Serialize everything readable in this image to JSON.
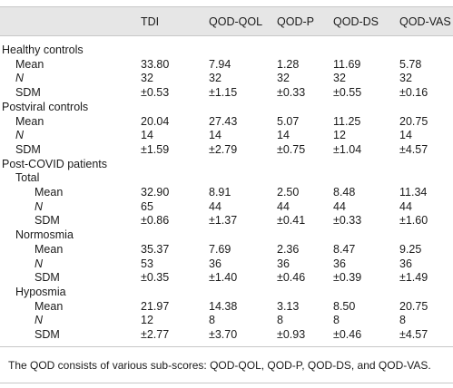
{
  "columns": [
    "",
    "TDI",
    "QOD-QOL",
    "QOD-P",
    "QOD-DS",
    "QOD-VAS"
  ],
  "rows": [
    {
      "kind": "section",
      "label": "Healthy controls",
      "values": [
        "",
        "",
        "",
        "",
        ""
      ]
    },
    {
      "kind": "stat",
      "label": "Mean",
      "italic": false,
      "values": [
        "33.80",
        "7.94",
        "1.28",
        "11.69",
        "5.78"
      ]
    },
    {
      "kind": "stat",
      "label": "N",
      "italic": true,
      "values": [
        "32",
        "32",
        "32",
        "32",
        "32"
      ]
    },
    {
      "kind": "stat",
      "label": "SDM",
      "italic": false,
      "values": [
        "±0.53",
        "±1.15",
        "±0.33",
        "±0.55",
        "±0.16"
      ]
    },
    {
      "kind": "section",
      "label": "Postviral controls",
      "values": [
        "",
        "",
        "",
        "",
        ""
      ]
    },
    {
      "kind": "stat",
      "label": "Mean",
      "italic": false,
      "values": [
        "20.04",
        "27.43",
        "5.07",
        "11.25",
        "20.75"
      ]
    },
    {
      "kind": "stat",
      "label": "N",
      "italic": true,
      "values": [
        "14",
        "14",
        "14",
        "12",
        "14"
      ]
    },
    {
      "kind": "stat",
      "label": "SDM",
      "italic": false,
      "values": [
        "±1.59",
        "±2.79",
        "±0.75",
        "±1.04",
        "±4.57"
      ]
    },
    {
      "kind": "section",
      "label": "Post-COVID patients",
      "values": [
        "",
        "",
        "",
        "",
        ""
      ]
    },
    {
      "kind": "subsection",
      "label": "Total",
      "values": [
        "",
        "",
        "",
        "",
        ""
      ]
    },
    {
      "kind": "substat",
      "label": "Mean",
      "italic": false,
      "values": [
        "32.90",
        "8.91",
        "2.50",
        "8.48",
        "11.34"
      ]
    },
    {
      "kind": "substat",
      "label": "N",
      "italic": true,
      "values": [
        "65",
        "44",
        "44",
        "44",
        "44"
      ]
    },
    {
      "kind": "substat",
      "label": "SDM",
      "italic": false,
      "values": [
        "±0.86",
        "±1.37",
        "±0.41",
        "±0.33",
        "±1.60"
      ]
    },
    {
      "kind": "subsection",
      "label": "Normosmia",
      "values": [
        "",
        "",
        "",
        "",
        ""
      ]
    },
    {
      "kind": "substat",
      "label": "Mean",
      "italic": false,
      "values": [
        "35.37",
        "7.69",
        "2.36",
        "8.47",
        "9.25"
      ]
    },
    {
      "kind": "substat",
      "label": "N",
      "italic": true,
      "values": [
        "53",
        "36",
        "36",
        "36",
        "36"
      ]
    },
    {
      "kind": "substat",
      "label": "SDM",
      "italic": false,
      "values": [
        "±0.35",
        "±1.40",
        "±0.46",
        "±0.39",
        "±1.49"
      ]
    },
    {
      "kind": "subsection",
      "label": "Hyposmia",
      "values": [
        "",
        "",
        "",
        "",
        ""
      ]
    },
    {
      "kind": "substat",
      "label": "Mean",
      "italic": false,
      "values": [
        "21.97",
        "14.38",
        "3.13",
        "8.50",
        "20.75"
      ]
    },
    {
      "kind": "substat",
      "label": "N",
      "italic": true,
      "values": [
        "12",
        "8",
        "8",
        "8",
        "8"
      ]
    },
    {
      "kind": "substat",
      "label": "SDM",
      "italic": false,
      "values": [
        "±2.77",
        "±3.70",
        "±0.93",
        "±0.46",
        "±4.57"
      ]
    }
  ],
  "footnote": "The QOD consists of various sub-scores: QOD-QOL, QOD-P, QOD-DS, and QOD-VAS."
}
